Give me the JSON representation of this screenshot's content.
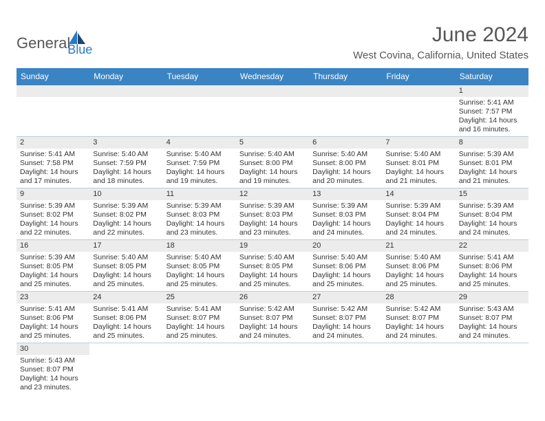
{
  "brand": {
    "name_a": "General",
    "name_b": "Blue"
  },
  "title": "June 2024",
  "location": "West Covina, California, United States",
  "colors": {
    "header_bg": "#3b84c4",
    "header_text": "#ffffff",
    "daynum_bg": "#ececec",
    "cell_border": "#b9cde1",
    "text": "#333333",
    "title_text": "#565656",
    "logo_blue": "#2b78c2"
  },
  "weekdays": [
    "Sunday",
    "Monday",
    "Tuesday",
    "Wednesday",
    "Thursday",
    "Friday",
    "Saturday"
  ],
  "first_weekday_index": 6,
  "days": [
    {
      "n": 1,
      "sr": "5:41 AM",
      "ss": "7:57 PM",
      "dh": 14,
      "dm": 16
    },
    {
      "n": 2,
      "sr": "5:41 AM",
      "ss": "7:58 PM",
      "dh": 14,
      "dm": 17
    },
    {
      "n": 3,
      "sr": "5:40 AM",
      "ss": "7:59 PM",
      "dh": 14,
      "dm": 18
    },
    {
      "n": 4,
      "sr": "5:40 AM",
      "ss": "7:59 PM",
      "dh": 14,
      "dm": 19
    },
    {
      "n": 5,
      "sr": "5:40 AM",
      "ss": "8:00 PM",
      "dh": 14,
      "dm": 19
    },
    {
      "n": 6,
      "sr": "5:40 AM",
      "ss": "8:00 PM",
      "dh": 14,
      "dm": 20
    },
    {
      "n": 7,
      "sr": "5:40 AM",
      "ss": "8:01 PM",
      "dh": 14,
      "dm": 21
    },
    {
      "n": 8,
      "sr": "5:39 AM",
      "ss": "8:01 PM",
      "dh": 14,
      "dm": 21
    },
    {
      "n": 9,
      "sr": "5:39 AM",
      "ss": "8:02 PM",
      "dh": 14,
      "dm": 22
    },
    {
      "n": 10,
      "sr": "5:39 AM",
      "ss": "8:02 PM",
      "dh": 14,
      "dm": 22
    },
    {
      "n": 11,
      "sr": "5:39 AM",
      "ss": "8:03 PM",
      "dh": 14,
      "dm": 23
    },
    {
      "n": 12,
      "sr": "5:39 AM",
      "ss": "8:03 PM",
      "dh": 14,
      "dm": 23
    },
    {
      "n": 13,
      "sr": "5:39 AM",
      "ss": "8:03 PM",
      "dh": 14,
      "dm": 24
    },
    {
      "n": 14,
      "sr": "5:39 AM",
      "ss": "8:04 PM",
      "dh": 14,
      "dm": 24
    },
    {
      "n": 15,
      "sr": "5:39 AM",
      "ss": "8:04 PM",
      "dh": 14,
      "dm": 24
    },
    {
      "n": 16,
      "sr": "5:39 AM",
      "ss": "8:05 PM",
      "dh": 14,
      "dm": 25
    },
    {
      "n": 17,
      "sr": "5:40 AM",
      "ss": "8:05 PM",
      "dh": 14,
      "dm": 25
    },
    {
      "n": 18,
      "sr": "5:40 AM",
      "ss": "8:05 PM",
      "dh": 14,
      "dm": 25
    },
    {
      "n": 19,
      "sr": "5:40 AM",
      "ss": "8:05 PM",
      "dh": 14,
      "dm": 25
    },
    {
      "n": 20,
      "sr": "5:40 AM",
      "ss": "8:06 PM",
      "dh": 14,
      "dm": 25
    },
    {
      "n": 21,
      "sr": "5:40 AM",
      "ss": "8:06 PM",
      "dh": 14,
      "dm": 25
    },
    {
      "n": 22,
      "sr": "5:41 AM",
      "ss": "8:06 PM",
      "dh": 14,
      "dm": 25
    },
    {
      "n": 23,
      "sr": "5:41 AM",
      "ss": "8:06 PM",
      "dh": 14,
      "dm": 25
    },
    {
      "n": 24,
      "sr": "5:41 AM",
      "ss": "8:06 PM",
      "dh": 14,
      "dm": 25
    },
    {
      "n": 25,
      "sr": "5:41 AM",
      "ss": "8:07 PM",
      "dh": 14,
      "dm": 25
    },
    {
      "n": 26,
      "sr": "5:42 AM",
      "ss": "8:07 PM",
      "dh": 14,
      "dm": 24
    },
    {
      "n": 27,
      "sr": "5:42 AM",
      "ss": "8:07 PM",
      "dh": 14,
      "dm": 24
    },
    {
      "n": 28,
      "sr": "5:42 AM",
      "ss": "8:07 PM",
      "dh": 14,
      "dm": 24
    },
    {
      "n": 29,
      "sr": "5:43 AM",
      "ss": "8:07 PM",
      "dh": 14,
      "dm": 24
    },
    {
      "n": 30,
      "sr": "5:43 AM",
      "ss": "8:07 PM",
      "dh": 14,
      "dm": 23
    }
  ],
  "labels": {
    "sunrise": "Sunrise:",
    "sunset": "Sunset:",
    "daylight_prefix": "Daylight:",
    "hours_word": "hours",
    "and_word": "and",
    "minutes_word": "minutes."
  }
}
